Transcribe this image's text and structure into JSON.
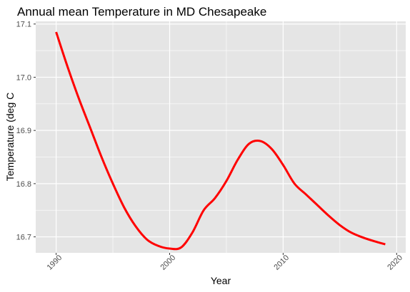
{
  "chart_data": {
    "type": "line",
    "title": "Annual mean Temperature in MD Chesapeake",
    "xlabel": "Year",
    "ylabel": "Temperature (deg C",
    "xlim": [
      1988.2,
      2020.8
    ],
    "ylim": [
      16.67,
      17.105
    ],
    "x_ticks": [
      1990,
      2000,
      2010,
      2020
    ],
    "x_tick_labels": [
      "1990",
      "2000",
      "2010",
      "2020"
    ],
    "y_ticks": [
      16.7,
      16.8,
      16.9,
      17.0,
      17.1
    ],
    "y_tick_labels": [
      "16.7",
      "16.8",
      "16.9",
      "17.0",
      "17.1"
    ],
    "grid": true,
    "background": "#e5e5e5",
    "grid_color": "#ffffff",
    "series": [
      {
        "color": "#ff0000",
        "x": [
          1990,
          1991,
          1992,
          1993,
          1994,
          1995,
          1996,
          1997,
          1998,
          1999,
          2000,
          2001,
          2002,
          2003,
          2004,
          2005,
          2006,
          2007,
          2008,
          2009,
          2010,
          2011,
          2012,
          2013,
          2014,
          2015,
          2016,
          2017,
          2018,
          2019
        ],
        "y": [
          17.085,
          17.02,
          16.96,
          16.905,
          16.85,
          16.8,
          16.755,
          16.72,
          16.695,
          16.683,
          16.678,
          16.68,
          16.708,
          16.75,
          16.773,
          16.805,
          16.845,
          16.875,
          16.88,
          16.865,
          16.835,
          16.8,
          16.78,
          16.76,
          16.74,
          16.722,
          16.708,
          16.699,
          16.692,
          16.686
        ]
      }
    ]
  }
}
